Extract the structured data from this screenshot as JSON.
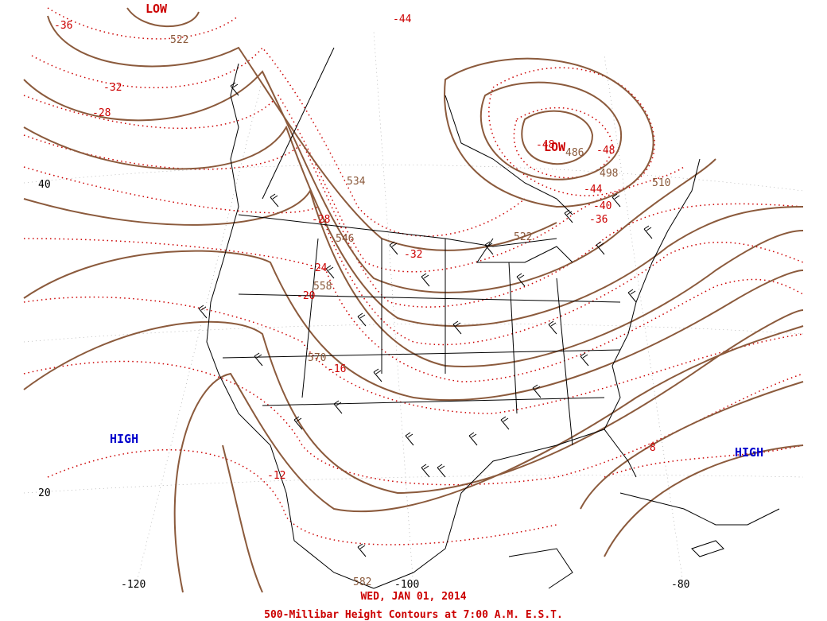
{
  "date_line": "WED, JAN 01, 2014",
  "caption": "500-Millibar Height Contours at 7:00 A.M. E.S.T.",
  "pressure_centers": {
    "high_pacific": "HIGH",
    "high_atlantic": "HIGH",
    "low_alaska": "LOW",
    "low_hudson": "LOW"
  },
  "height_labels": [
    "522",
    "534",
    "546",
    "558",
    "570",
    "582",
    "486",
    "498",
    "510",
    "522"
  ],
  "temp_labels": [
    "-36",
    "-32",
    "-28",
    "-44",
    "-48",
    "-48",
    "-44",
    "-40",
    "-36",
    "-32",
    "-28",
    "-24",
    "-20",
    "-16",
    "-12",
    "-8"
  ],
  "lat_labels": [
    "40",
    "20"
  ],
  "lon_labels": [
    "-120",
    "-100",
    "-80"
  ],
  "colors": {
    "height_contour": "#8b5a3c",
    "temp_contour": "#cc0000",
    "high": "#0000cc",
    "low": "#cc0000",
    "boundaries": "#000000"
  }
}
